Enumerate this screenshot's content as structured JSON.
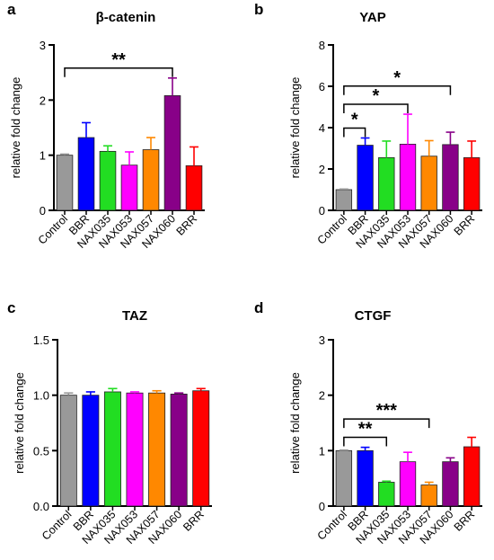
{
  "figure": {
    "colors": {
      "Control": "#999999",
      "BBR": "#0000ff",
      "NAX035": "#22dd22",
      "NAX053": "#ff00ff",
      "NAX057": "#ff8800",
      "NAX060": "#880088",
      "BRR": "#ff0000"
    }
  },
  "chart_data": [
    {
      "type": "bar",
      "panel_label": "a",
      "title": "β-catenin",
      "ylabel": "relative fold change",
      "xlabel": "",
      "ylim": [
        0,
        3
      ],
      "yticks": [
        "0",
        "1",
        "2",
        "3"
      ],
      "categories": [
        "Control",
        "BBR",
        "NAX035",
        "NAX053",
        "NAX057",
        "NAX060",
        "BRR"
      ],
      "values": [
        1.0,
        1.32,
        1.07,
        0.82,
        1.1,
        2.08,
        0.81
      ],
      "errors": [
        0.02,
        0.27,
        0.1,
        0.24,
        0.22,
        0.32,
        0.34
      ],
      "significance": [
        {
          "from": "Control",
          "to": "NAX060",
          "label": "**"
        }
      ]
    },
    {
      "type": "bar",
      "panel_label": "b",
      "title": "YAP",
      "ylabel": "relative fold change",
      "xlabel": "",
      "ylim": [
        0,
        8
      ],
      "yticks": [
        "0",
        "2",
        "4",
        "6",
        "8"
      ],
      "categories": [
        "Control",
        "BBR",
        "NAX035",
        "NAX053",
        "NAX057",
        "NAX060",
        "BRR"
      ],
      "values": [
        1.0,
        3.15,
        2.55,
        3.2,
        2.62,
        3.18,
        2.55
      ],
      "errors": [
        0.03,
        0.35,
        0.8,
        1.45,
        0.75,
        0.6,
        0.8
      ],
      "significance": [
        {
          "from": "Control",
          "to": "BBR",
          "label": "*"
        },
        {
          "from": "Control",
          "to": "NAX053",
          "label": "*"
        },
        {
          "from": "Control",
          "to": "NAX060",
          "label": "*"
        }
      ]
    },
    {
      "type": "bar",
      "panel_label": "c",
      "title": "TAZ",
      "ylabel": "relative fold change",
      "xlabel": "",
      "ylim": [
        0,
        1.5
      ],
      "yticks": [
        "0.0",
        "0.5",
        "1.0",
        "1.5"
      ],
      "categories": [
        "Control",
        "BBR",
        "NAX035",
        "NAX053",
        "NAX057",
        "NAX060",
        "BRR"
      ],
      "values": [
        1.0,
        1.0,
        1.03,
        1.02,
        1.02,
        1.01,
        1.04
      ],
      "errors": [
        0.02,
        0.03,
        0.03,
        0.01,
        0.02,
        0.01,
        0.02
      ],
      "significance": []
    },
    {
      "type": "bar",
      "panel_label": "d",
      "title": "CTGF",
      "ylabel": "relative fold change",
      "xlabel": "",
      "ylim": [
        0,
        3
      ],
      "yticks": [
        "0",
        "1",
        "2",
        "3"
      ],
      "categories": [
        "Control",
        "BBR",
        "NAX035",
        "NAX053",
        "NAX057",
        "NAX060",
        "BRR"
      ],
      "values": [
        1.0,
        1.0,
        0.43,
        0.8,
        0.38,
        0.8,
        1.07
      ],
      "errors": [
        0.01,
        0.06,
        0.02,
        0.17,
        0.05,
        0.07,
        0.17
      ],
      "significance": [
        {
          "from": "Control",
          "to": "NAX035",
          "label": "**"
        },
        {
          "from": "Control",
          "to": "NAX057",
          "label": "***"
        }
      ]
    }
  ]
}
